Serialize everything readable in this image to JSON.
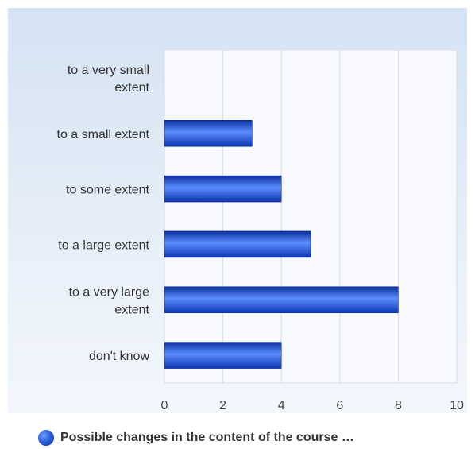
{
  "chart_data": {
    "type": "bar",
    "orientation": "horizontal",
    "categories": [
      [
        "to a very small",
        "extent"
      ],
      [
        "to a small extent"
      ],
      [
        "to some extent"
      ],
      [
        "to a large extent"
      ],
      [
        "to a very large",
        "extent"
      ],
      [
        "don't know"
      ]
    ],
    "series": [
      {
        "name": "Possible changes in the content of the course …",
        "values": [
          0,
          3,
          4,
          5,
          8,
          4
        ]
      }
    ],
    "xlim": [
      0,
      10
    ],
    "xticks": [
      "0",
      "2",
      "4",
      "6",
      "8",
      "10"
    ],
    "grid": true,
    "legend_position": "bottom",
    "colors": {
      "panel_top": "#d5e3f3",
      "panel_bottom": "#f3f7fc",
      "plot_bg": "#f7f9fc",
      "grid": "#d9dee6",
      "bar_dark": "#0b2f9e",
      "bar_light": "#5b8dff"
    }
  }
}
